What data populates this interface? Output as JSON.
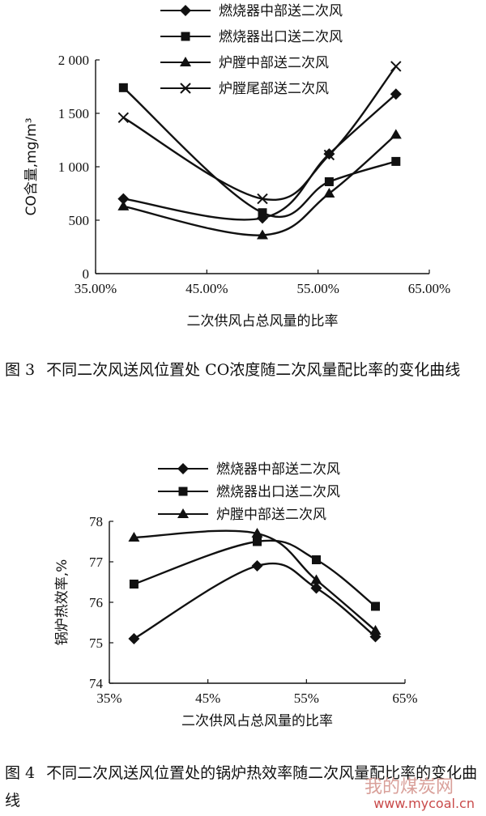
{
  "chart_data": [
    {
      "type": "line",
      "x": [
        0.375,
        0.5,
        0.56,
        0.62
      ],
      "xticks": [
        "35.00%",
        "45.00%",
        "55.00%",
        "65.00%"
      ],
      "xtick_values": [
        0.35,
        0.45,
        0.55,
        0.65
      ],
      "xlim": [
        0.35,
        0.65
      ],
      "ylim": [
        0,
        2000
      ],
      "yticks": [
        "0",
        "500",
        "1 000",
        "1 500",
        "2 000"
      ],
      "ytick_values": [
        0,
        500,
        1000,
        1500,
        2000
      ],
      "xlabel": "二次供风占总风量的比率",
      "ylabel": "CO含量,mg/m³",
      "legend": "top",
      "grid": false,
      "series": [
        {
          "name": "燃烧器中部送二次风",
          "marker": "diamond",
          "values": [
            700,
            520,
            1120,
            1680
          ]
        },
        {
          "name": "燃烧器出口送二次风",
          "marker": "square",
          "values": [
            1740,
            570,
            860,
            1050
          ]
        },
        {
          "name": "炉膛中部送二次风",
          "marker": "triangle",
          "values": [
            630,
            360,
            750,
            1300
          ]
        },
        {
          "name": "炉膛尾部送二次风",
          "marker": "x",
          "values": [
            1460,
            700,
            1110,
            1940
          ]
        }
      ]
    },
    {
      "type": "line",
      "x": [
        0.375,
        0.5,
        0.56,
        0.62
      ],
      "xticks": [
        "35%",
        "45%",
        "55%",
        "65%"
      ],
      "xtick_values": [
        0.35,
        0.45,
        0.55,
        0.65
      ],
      "xlim": [
        0.35,
        0.65
      ],
      "ylim": [
        74,
        78
      ],
      "yticks": [
        "74",
        "75",
        "76",
        "77",
        "78"
      ],
      "ytick_values": [
        74,
        75,
        76,
        77,
        78
      ],
      "xlabel": "二次供风占总风量的比率",
      "ylabel": "锅炉热效率,%",
      "legend": "top",
      "grid": false,
      "series": [
        {
          "name": "燃烧器中部送二次风",
          "marker": "diamond",
          "values": [
            75.1,
            76.9,
            76.35,
            75.15
          ]
        },
        {
          "name": "燃烧器出口送二次风",
          "marker": "square",
          "values": [
            76.45,
            77.5,
            77.05,
            75.9
          ]
        },
        {
          "name": "炉膛中部送二次风",
          "marker": "triangle",
          "values": [
            77.6,
            77.7,
            76.55,
            75.3
          ]
        }
      ]
    }
  ],
  "captions": {
    "fig3_no": "图 3",
    "fig3_text": "不同二次风送风位置处 CO浓度随二次风量配比率的变化曲线",
    "fig4_no": "图 4",
    "fig4_text": "不同二次风送风位置处的锅炉热效率随二次风量配比率的变化曲线"
  },
  "watermark": {
    "text_cn": "我的煤炭网",
    "url": "www.mycoal.cn"
  }
}
